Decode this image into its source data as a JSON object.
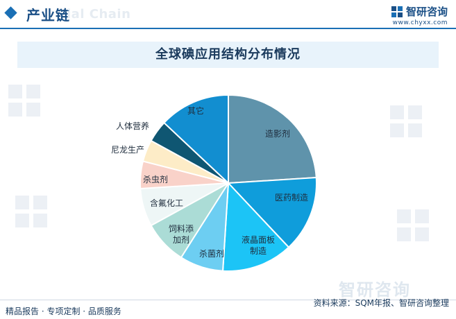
{
  "header": {
    "section_title": "产业链",
    "section_title_en": "ial Chain",
    "brand_name": "智研咨询",
    "brand_url": "www.chyxx.com"
  },
  "chart_data": {
    "type": "pie",
    "title": "全球碘应用结构分布情况",
    "slices": [
      {
        "label": "造影剂",
        "value": 24,
        "color": "#5f93ab"
      },
      {
        "label": "医药制造",
        "value": 14,
        "color": "#0f9ddb"
      },
      {
        "label": "液晶面板制造",
        "value": 13,
        "color": "#1cc4f6"
      },
      {
        "label": "杀菌剂",
        "value": 8,
        "color": "#6dcef2"
      },
      {
        "label": "饲料添加剂",
        "value": 8,
        "color": "#abdcd6"
      },
      {
        "label": "含氟化工",
        "value": 7,
        "color": "#eef6f6"
      },
      {
        "label": "杀虫剂",
        "value": 5,
        "color": "#f9d2c9"
      },
      {
        "label": "尼龙生产",
        "value": 4,
        "color": "#fdecc7"
      },
      {
        "label": "人体营养",
        "value": 4,
        "color": "#0f5672"
      },
      {
        "label": "其它",
        "value": 13,
        "color": "#128ed0"
      }
    ]
  },
  "footer": {
    "left": "精品报告 · 专项定制 · 品质服务",
    "source": "资料来源：SQM年报、智研咨询整理",
    "brand_big": "智研咨询"
  }
}
